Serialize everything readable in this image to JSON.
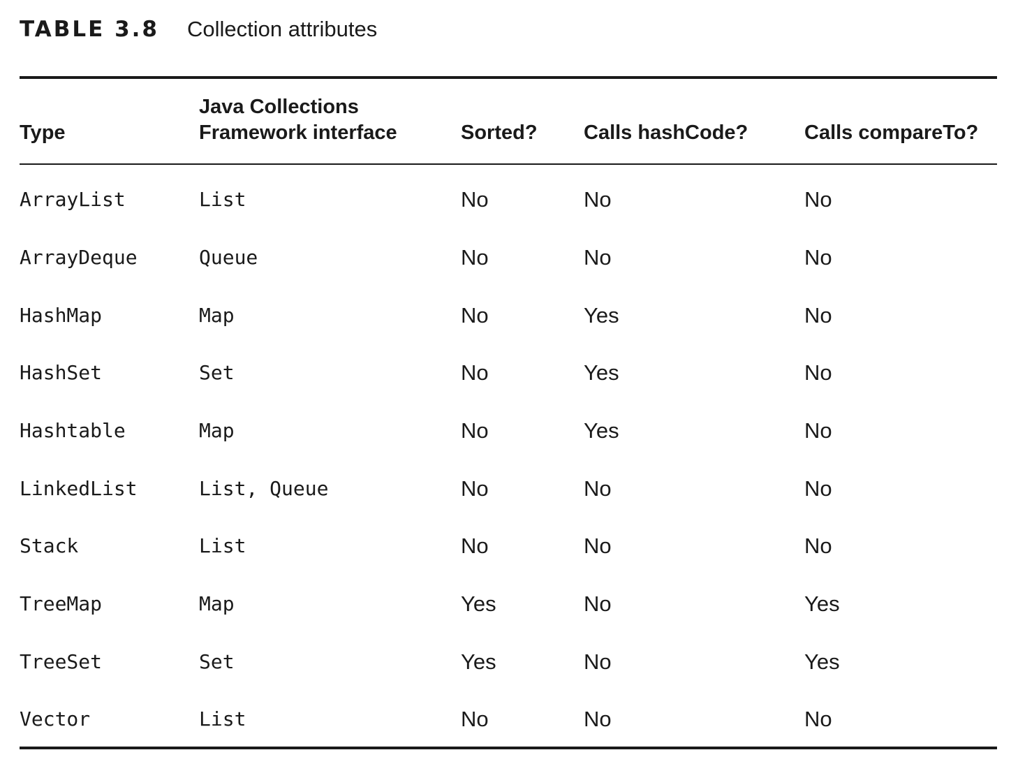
{
  "caption": {
    "label": "TABLE 3.8",
    "title": "Collection attributes"
  },
  "headers": {
    "type": "Type",
    "interface_line1": "Java Collections",
    "interface_line2": "Framework interface",
    "sorted": "Sorted?",
    "hashcode": "Calls hashCode?",
    "compareto": "Calls compareTo?"
  },
  "rows": [
    {
      "type": "ArrayList",
      "interface": "List",
      "sorted": "No",
      "hashcode": "No",
      "compareto": "No"
    },
    {
      "type": "ArrayDeque",
      "interface": "Queue",
      "sorted": "No",
      "hashcode": "No",
      "compareto": "No"
    },
    {
      "type": "HashMap",
      "interface": "Map",
      "sorted": "No",
      "hashcode": "Yes",
      "compareto": "No"
    },
    {
      "type": "HashSet",
      "interface": "Set",
      "sorted": "No",
      "hashcode": "Yes",
      "compareto": "No"
    },
    {
      "type": "Hashtable",
      "interface": "Map",
      "sorted": "No",
      "hashcode": "Yes",
      "compareto": "No"
    },
    {
      "type": "LinkedList",
      "interface": "List, Queue",
      "sorted": "No",
      "hashcode": "No",
      "compareto": "No"
    },
    {
      "type": "Stack",
      "interface": "List",
      "sorted": "No",
      "hashcode": "No",
      "compareto": "No"
    },
    {
      "type": "TreeMap",
      "interface": "Map",
      "sorted": "Yes",
      "hashcode": "No",
      "compareto": "Yes"
    },
    {
      "type": "TreeSet",
      "interface": "Set",
      "sorted": "Yes",
      "hashcode": "No",
      "compareto": "Yes"
    },
    {
      "type": "Vector",
      "interface": "List",
      "sorted": "No",
      "hashcode": "No",
      "compareto": "No"
    }
  ]
}
